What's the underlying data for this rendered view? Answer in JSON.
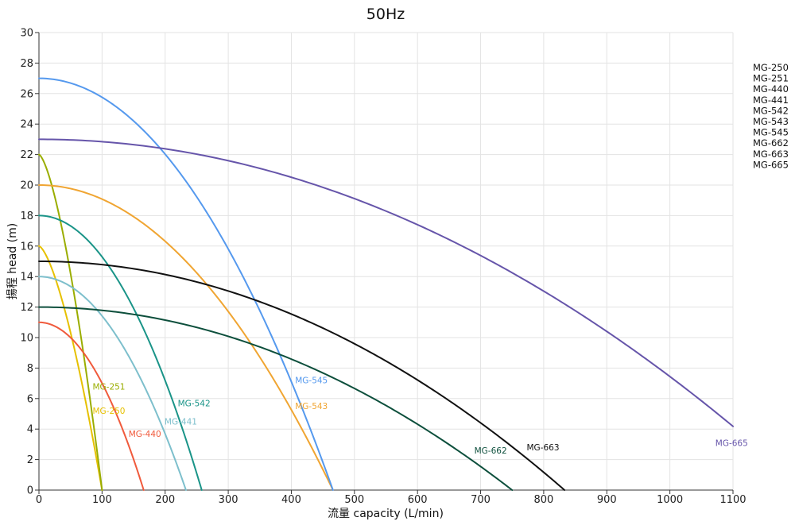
{
  "chart_data": {
    "type": "line",
    "title": "50Hz",
    "xlabel": "流量 capacity (L/min)",
    "ylabel": "揚程 head (m)",
    "xlim": [
      0,
      1100
    ],
    "ylim": [
      0,
      30
    ],
    "xticks": [
      "0",
      "100",
      "200",
      "300",
      "400",
      "500",
      "600",
      "700",
      "800",
      "900",
      "1000",
      "1100"
    ],
    "yticks": [
      "0",
      "2",
      "4",
      "6",
      "8",
      "10",
      "12",
      "14",
      "16",
      "18",
      "20",
      "22",
      "24",
      "26",
      "28",
      "30"
    ],
    "grid": true,
    "legend_position": "right",
    "legend": [
      "MG-250",
      "MG-251",
      "MG-440",
      "MG-441",
      "MG-542",
      "MG-543",
      "MG-545",
      "MG-662",
      "MG-663",
      "MG-665"
    ],
    "series": [
      {
        "name": "MG-250",
        "color": "#e6c000",
        "shut_off_head": 16,
        "max_capacity": 100,
        "exponent": 1.5,
        "label": "MG-250",
        "label_at": [
          85,
          5.0
        ]
      },
      {
        "name": "MG-251",
        "color": "#9aad00",
        "shut_off_head": 22,
        "max_capacity": 100,
        "exponent": 1.5,
        "label": "MG-251",
        "label_at": [
          85,
          6.6
        ]
      },
      {
        "name": "MG-440",
        "color": "#f05a3c",
        "shut_off_head": 11,
        "max_capacity": 166,
        "exponent": 2,
        "label": "MG-440",
        "label_at": [
          142,
          3.5
        ]
      },
      {
        "name": "MG-441",
        "color": "#7dbfcc",
        "shut_off_head": 14,
        "max_capacity": 233,
        "exponent": 2,
        "label": "MG-441",
        "label_at": [
          199,
          4.3
        ]
      },
      {
        "name": "MG-542",
        "color": "#1a9488",
        "shut_off_head": 18,
        "max_capacity": 258,
        "exponent": 2,
        "label": "MG-542",
        "label_at": [
          220,
          5.5
        ]
      },
      {
        "name": "MG-543",
        "color": "#f0a532",
        "shut_off_head": 20,
        "max_capacity": 466,
        "exponent": 2,
        "label": "MG-543",
        "label_at": [
          406,
          5.3
        ]
      },
      {
        "name": "MG-545",
        "color": "#5599ee",
        "shut_off_head": 27,
        "max_capacity": 466,
        "exponent": 2,
        "label": "MG-545",
        "label_at": [
          406,
          7.0
        ]
      },
      {
        "name": "MG-662",
        "color": "#0d4f3c",
        "shut_off_head": 12,
        "max_capacity": 750,
        "exponent": 2,
        "label": "MG-662",
        "label_at": [
          690,
          2.4
        ]
      },
      {
        "name": "MG-663",
        "color": "#111111",
        "shut_off_head": 15,
        "max_capacity": 833,
        "exponent": 2,
        "label": "MG-663",
        "label_at": [
          773,
          2.6
        ]
      },
      {
        "name": "MG-665",
        "color": "#6655aa",
        "shut_off_head": 23,
        "max_capacity": 1216,
        "exponent": 2,
        "label": "MG-665",
        "label_at": [
          1072,
          2.9
        ]
      }
    ]
  }
}
